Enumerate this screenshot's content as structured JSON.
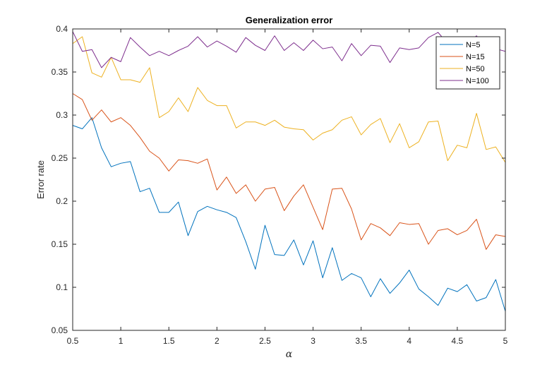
{
  "chart_data": {
    "type": "line",
    "title": "Generalization error",
    "xlabel": "α",
    "ylabel": "Error rate",
    "xlim": [
      0.5,
      5
    ],
    "ylim": [
      0.05,
      0.4
    ],
    "grid": false,
    "legend_position": "top-right",
    "x_ticks": [
      0.5,
      1,
      1.5,
      2,
      2.5,
      3,
      3.5,
      4,
      4.5,
      5
    ],
    "x_tick_labels": [
      "0.5",
      "1",
      "1.5",
      "2",
      "2.5",
      "3",
      "3.5",
      "4",
      "4.5",
      "5"
    ],
    "y_ticks": [
      0.05,
      0.1,
      0.15,
      0.2,
      0.25,
      0.3,
      0.35,
      0.4
    ],
    "y_tick_labels": [
      "0.05",
      "0.1",
      "0.15",
      "0.2",
      "0.25",
      "0.3",
      "0.35",
      "0.4"
    ],
    "x": [
      0.5,
      0.6,
      0.7,
      0.8,
      0.9,
      1.0,
      1.1,
      1.2,
      1.3,
      1.4,
      1.5,
      1.6,
      1.7,
      1.8,
      1.9,
      2.0,
      2.1,
      2.2,
      2.3,
      2.4,
      2.5,
      2.6,
      2.7,
      2.8,
      2.9,
      3.0,
      3.1,
      3.2,
      3.3,
      3.4,
      3.5,
      3.6,
      3.7,
      3.8,
      3.9,
      4.0,
      4.1,
      4.2,
      4.3,
      4.4,
      4.5,
      4.6,
      4.7,
      4.8,
      4.9,
      5.0
    ],
    "series": [
      {
        "name": "N=5",
        "color": "#0072BD",
        "values": [
          0.288,
          0.284,
          0.297,
          0.262,
          0.24,
          0.244,
          0.246,
          0.211,
          0.215,
          0.187,
          0.187,
          0.199,
          0.16,
          0.188,
          0.194,
          0.19,
          0.187,
          0.181,
          0.153,
          0.121,
          0.172,
          0.138,
          0.137,
          0.155,
          0.126,
          0.154,
          0.111,
          0.146,
          0.108,
          0.116,
          0.111,
          0.089,
          0.11,
          0.093,
          0.105,
          0.12,
          0.098,
          0.089,
          0.079,
          0.099,
          0.095,
          0.103,
          0.084,
          0.088,
          0.109,
          0.072
        ]
      },
      {
        "name": "N=15",
        "color": "#D95319",
        "values": [
          0.325,
          0.318,
          0.294,
          0.306,
          0.292,
          0.297,
          0.288,
          0.274,
          0.258,
          0.25,
          0.235,
          0.248,
          0.247,
          0.244,
          0.249,
          0.213,
          0.228,
          0.209,
          0.219,
          0.2,
          0.214,
          0.216,
          0.189,
          0.206,
          0.219,
          0.193,
          0.167,
          0.214,
          0.215,
          0.191,
          0.155,
          0.174,
          0.169,
          0.16,
          0.175,
          0.173,
          0.174,
          0.15,
          0.166,
          0.168,
          0.161,
          0.166,
          0.179,
          0.144,
          0.161,
          0.159
        ]
      },
      {
        "name": "N=50",
        "color": "#EDB120",
        "values": [
          0.383,
          0.391,
          0.349,
          0.344,
          0.367,
          0.341,
          0.341,
          0.338,
          0.355,
          0.297,
          0.304,
          0.32,
          0.304,
          0.332,
          0.317,
          0.311,
          0.311,
          0.285,
          0.292,
          0.292,
          0.288,
          0.294,
          0.286,
          0.284,
          0.283,
          0.271,
          0.279,
          0.283,
          0.294,
          0.298,
          0.277,
          0.289,
          0.296,
          0.268,
          0.29,
          0.262,
          0.269,
          0.292,
          0.293,
          0.247,
          0.265,
          0.262,
          0.302,
          0.26,
          0.263,
          0.245
        ]
      },
      {
        "name": "N=100",
        "color": "#7E2F8E",
        "values": [
          0.397,
          0.374,
          0.376,
          0.355,
          0.367,
          0.362,
          0.39,
          0.379,
          0.369,
          0.374,
          0.369,
          0.375,
          0.38,
          0.391,
          0.379,
          0.386,
          0.38,
          0.373,
          0.39,
          0.381,
          0.375,
          0.392,
          0.375,
          0.384,
          0.375,
          0.387,
          0.377,
          0.379,
          0.363,
          0.383,
          0.369,
          0.381,
          0.38,
          0.361,
          0.378,
          0.376,
          0.378,
          0.39,
          0.396,
          0.383,
          0.385,
          0.384,
          0.392,
          0.379,
          0.377,
          0.374
        ]
      }
    ]
  }
}
